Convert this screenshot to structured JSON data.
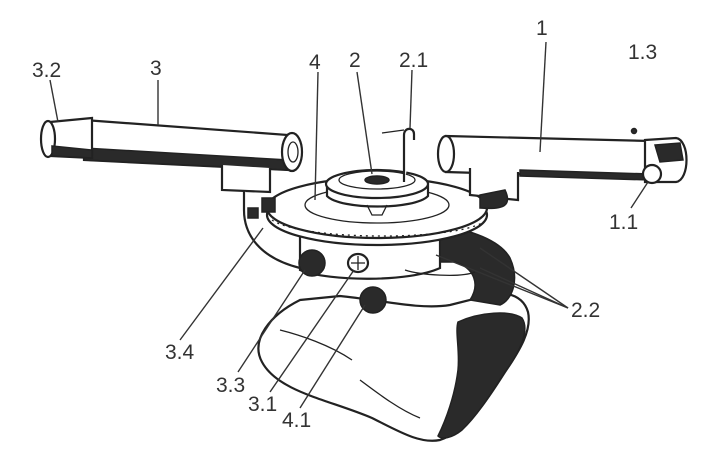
{
  "labels": {
    "l_1": "1",
    "l_1_3": "1.3",
    "l_1_1": "1.1",
    "l_2": "2",
    "l_2_1": "2.1",
    "l_2_2": "2.2",
    "l_3": "3",
    "l_3_2": "3.2",
    "l_3_1": "3.1",
    "l_3_3": "3.3",
    "l_3_4": "3.4",
    "l_4": "4",
    "l_4_1": "4.1"
  },
  "colors": {
    "ink": "#222222",
    "label": "#333333",
    "background": "#ffffff"
  }
}
